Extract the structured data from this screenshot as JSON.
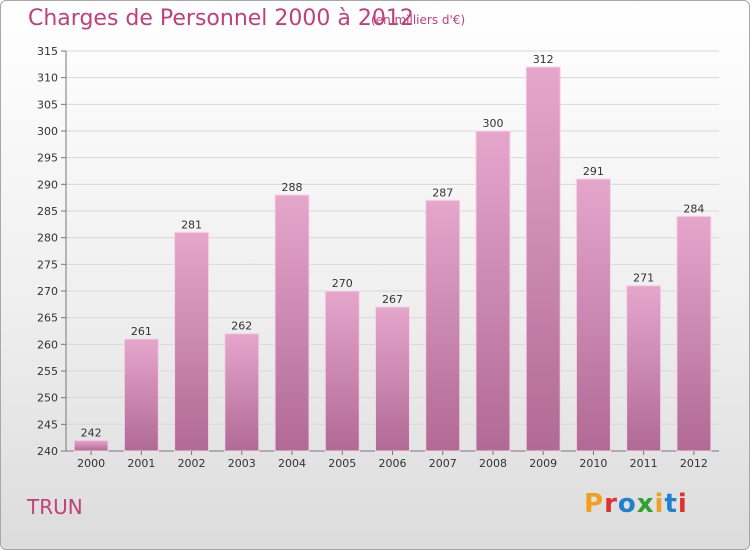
{
  "title": "Charges de Personnel 2000 à 2012",
  "subtitle": "(en milliers d'€)",
  "location": "TRUN",
  "logo": {
    "text": "Proxiti",
    "letters": [
      {
        "ch": "P",
        "color": "#f0a020"
      },
      {
        "ch": "r",
        "color": "#e03030"
      },
      {
        "ch": "o",
        "color": "#2080d0"
      },
      {
        "ch": "x",
        "color": "#30a030"
      },
      {
        "ch": "i",
        "color": "#f0a020"
      },
      {
        "ch": "t",
        "color": "#2080d0"
      },
      {
        "ch": "i",
        "color": "#e03030"
      }
    ]
  },
  "chart_data": {
    "type": "bar",
    "categories": [
      "2000",
      "2001",
      "2002",
      "2003",
      "2004",
      "2005",
      "2006",
      "2007",
      "2008",
      "2009",
      "2010",
      "2011",
      "2012"
    ],
    "values": [
      242,
      261,
      281,
      262,
      288,
      270,
      267,
      287,
      300,
      312,
      291,
      271,
      284
    ],
    "ylim": [
      240,
      315
    ],
    "yticks": [
      240,
      245,
      250,
      255,
      260,
      265,
      270,
      275,
      280,
      285,
      290,
      295,
      300,
      305,
      310,
      315
    ],
    "grid": true,
    "bar_color_top": "#e6a6cc",
    "bar_color_bottom": "#b06a95",
    "grid_color": "#d8d8d8"
  }
}
